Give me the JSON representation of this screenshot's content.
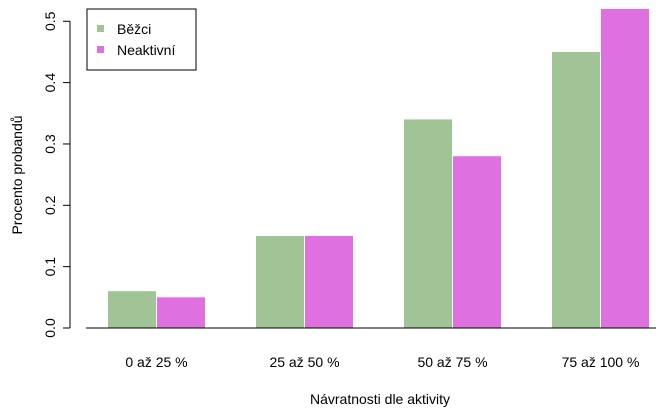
{
  "chart_data": {
    "type": "bar",
    "title": "",
    "xlabel": "Návratnosti dle aktivity",
    "ylabel": "Procento probandů",
    "categories": [
      "0 až 25 %",
      "25 až 50 %",
      "50 až 75 %",
      "75 až 100 %"
    ],
    "series": [
      {
        "name": "Běžci",
        "color": "#a0c495",
        "values": [
          0.06,
          0.15,
          0.34,
          0.45
        ]
      },
      {
        "name": "Neaktivní",
        "color": "#df70df",
        "values": [
          0.05,
          0.15,
          0.28,
          0.52
        ]
      }
    ],
    "ylim": [
      0,
      0.52
    ],
    "yticks": [
      "0.0",
      "0.1",
      "0.2",
      "0.3",
      "0.4",
      "0.5"
    ],
    "grid": false,
    "legend": "top-left"
  }
}
